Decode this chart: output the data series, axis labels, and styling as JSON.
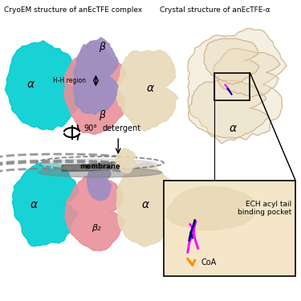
{
  "title_left": "CryoEM structure of anEcTFE complex",
  "title_right": "Crystal structure of anEcTFE-α",
  "bg_color": "#f0f0f0",
  "cyan_color": "#00CED1",
  "pink_color": "#E8909A",
  "purple_color": "#9B8EC4",
  "wheat_color": "#E8D9B8",
  "gray_color": "#808080",
  "dark_gray": "#505050",
  "white_bg": "#FFFFFF",
  "label_alpha": "α",
  "label_beta": "β",
  "label_beta2": "β₂",
  "label_hh": "H-H region",
  "label_membrane": "membrane",
  "label_detergent": "detergent",
  "label_90": "90°",
  "label_ech": "ECH acyl tail\nbinding pocket",
  "label_coa": "CoA",
  "magenta_color": "#FF00FF",
  "orange_color": "#FF8C00",
  "navy_color": "#000080",
  "box_color": "#F5E6C8"
}
